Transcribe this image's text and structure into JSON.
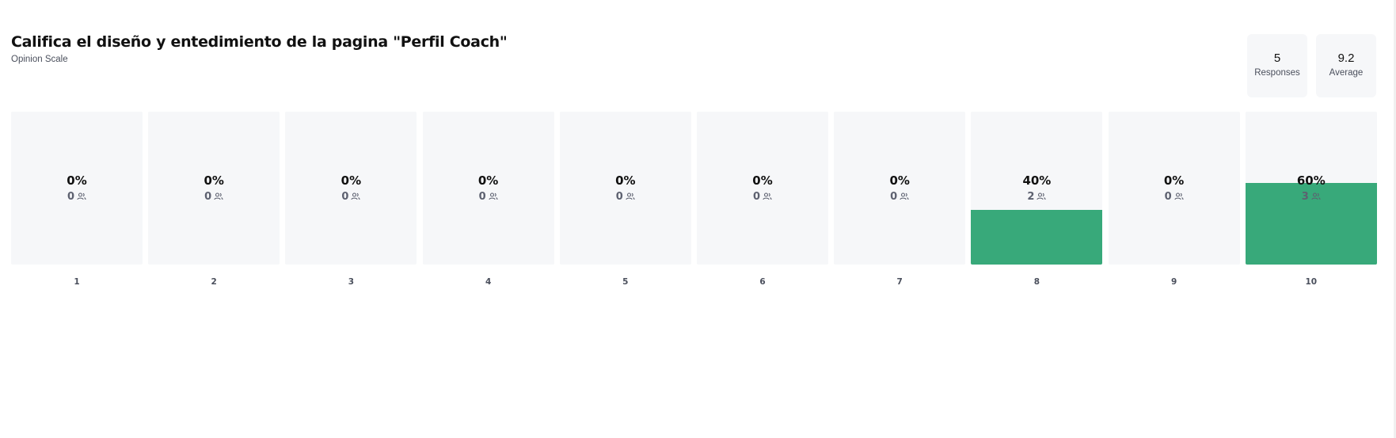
{
  "header": {
    "title": "Califica el diseño y entedimiento de la pagina \"Perfil Coach\"",
    "subtitle": "Opinion Scale"
  },
  "stats": {
    "responses_value": "5",
    "responses_label": "Responses",
    "average_value": "9.2",
    "average_label": "Average"
  },
  "colors": {
    "bar_fill": "#38a97a",
    "bar_background": "#f6f7f9",
    "count_text": "#5d6170"
  },
  "icons": {
    "count_icon": "people-icon"
  },
  "chart_data": {
    "type": "bar",
    "title": "Califica el diseño y entedimiento de la pagina \"Perfil Coach\"",
    "categories": [
      "1",
      "2",
      "3",
      "4",
      "5",
      "6",
      "7",
      "8",
      "9",
      "10"
    ],
    "percent_labels": [
      "0%",
      "0%",
      "0%",
      "0%",
      "0%",
      "0%",
      "0%",
      "40%",
      "0%",
      "60%"
    ],
    "values": [
      0,
      0,
      0,
      0,
      0,
      0,
      0,
      40,
      0,
      60
    ],
    "counts": [
      0,
      0,
      0,
      0,
      0,
      0,
      0,
      2,
      0,
      3
    ],
    "ylim": [
      0,
      100
    ],
    "grid": false,
    "legend": "none"
  }
}
